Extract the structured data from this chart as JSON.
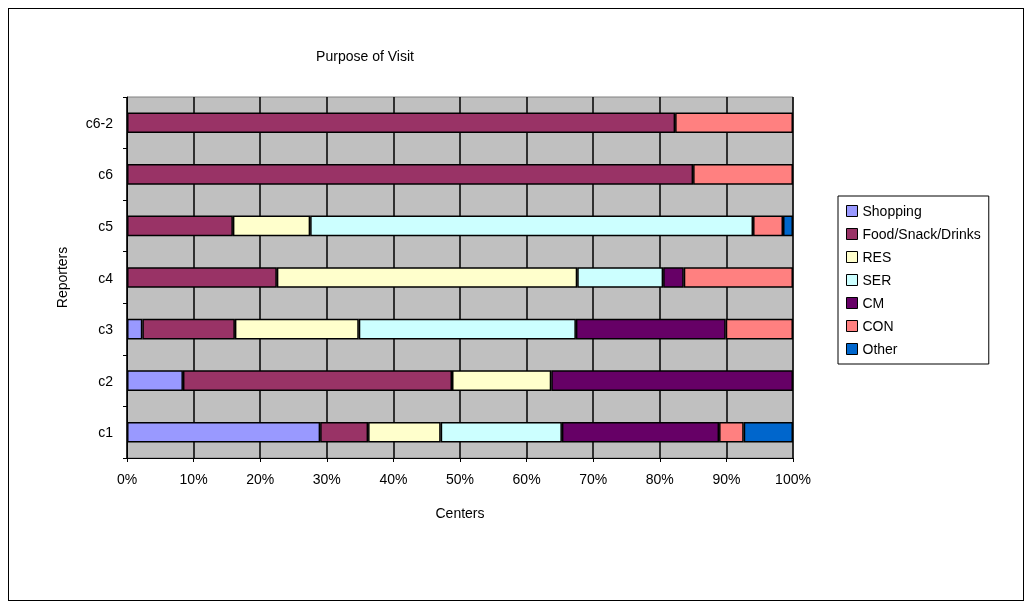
{
  "chart_data": {
    "type": "bar",
    "orientation": "horizontal",
    "stacked": true,
    "title": "Purpose of Visit",
    "xlabel": "Centers",
    "ylabel": "Reporters",
    "categories": [
      "c6-2",
      "c6",
      "c5",
      "c4",
      "c3",
      "c2",
      "c1"
    ],
    "series": [
      {
        "name": "Shopping",
        "color": "#9999ff",
        "values": [
          null,
          null,
          null,
          null,
          2.3,
          8.4,
          29.0
        ]
      },
      {
        "name": "Food/Snack/Drinks",
        "color": "#993366",
        "values": [
          82.3,
          85,
          15.9,
          22.5,
          13.9,
          40.4,
          7.2
        ]
      },
      {
        "name": "RES",
        "color": "#ffffcc",
        "values": [
          null,
          null,
          11.6,
          45.1,
          18.6,
          14.9,
          10.9
        ]
      },
      {
        "name": "SER",
        "color": "#ccffff",
        "values": [
          null,
          null,
          66.5,
          12.9,
          32.6,
          null,
          18.2
        ]
      },
      {
        "name": "CM",
        "color": "#660066",
        "values": [
          null,
          null,
          null,
          3.1,
          22.5,
          36.3,
          23.6
        ]
      },
      {
        "name": "CON",
        "color": "#ff8080",
        "values": [
          17.7,
          15,
          4.5,
          16.4,
          10.1,
          null,
          3.7
        ]
      },
      {
        "name": "Other",
        "color": "#0066cc",
        "values": [
          null,
          null,
          1.5,
          null,
          null,
          null,
          7.4
        ]
      }
    ],
    "xlim": [
      0,
      100
    ],
    "xticks": [
      {
        "value": 0,
        "label": "0%"
      },
      {
        "value": 10,
        "label": "10%"
      },
      {
        "value": 20,
        "label": "20%"
      },
      {
        "value": 30,
        "label": "30%"
      },
      {
        "value": 40,
        "label": "40%"
      },
      {
        "value": 50,
        "label": "50%"
      },
      {
        "value": 60,
        "label": "60%"
      },
      {
        "value": 70,
        "label": "70%"
      },
      {
        "value": 80,
        "label": "80%"
      },
      {
        "value": 90,
        "label": "90%"
      },
      {
        "value": 100,
        "label": "100%"
      }
    ],
    "grid": "x",
    "legend": "right"
  }
}
